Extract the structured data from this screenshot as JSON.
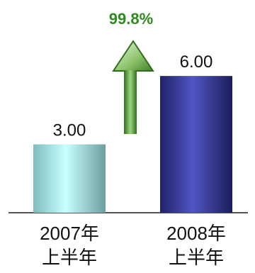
{
  "chart_data": {
    "type": "bar",
    "categories": [
      [
        "2007年",
        "上半年"
      ],
      [
        "2008年",
        "上半年"
      ]
    ],
    "values": [
      3.0,
      6.0
    ],
    "value_labels": [
      "3.00",
      "6.00"
    ],
    "ylim": [
      0,
      7
    ],
    "grid": false,
    "title": "",
    "xlabel": "",
    "ylabel": "",
    "bar_colors": [
      "#8fe0dc",
      "#34388f"
    ],
    "annotation": {
      "text": "99.8%",
      "color": "#2f8a1e",
      "arrow": "up",
      "arrow_color": "#6aa84f"
    }
  }
}
